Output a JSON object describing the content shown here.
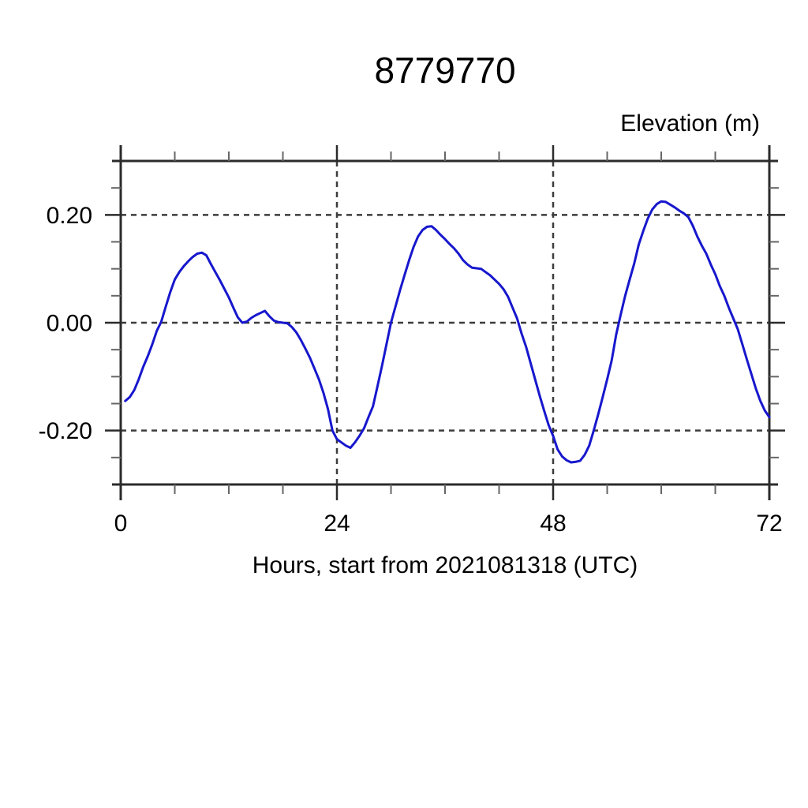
{
  "chart_data": {
    "type": "line",
    "title": "8779770",
    "x_axis": {
      "label": "Hours, start from 2021081318 (UTC)",
      "range": [
        0,
        72
      ],
      "major_ticks": [
        0,
        24,
        48,
        72
      ],
      "tick_labels": [
        "0",
        "24",
        "48",
        "72"
      ],
      "minor_tick_step": 6
    },
    "y_axis": {
      "label": "Elevation (m)",
      "range": [
        -0.3,
        0.3
      ],
      "major_ticks": [
        -0.2,
        0.0,
        0.2
      ],
      "tick_labels": [
        "-0.20",
        "0.00",
        "0.20"
      ],
      "minor_tick_step": 0.05
    },
    "gridlines": {
      "x": [
        24,
        48
      ],
      "y": [
        -0.2,
        0.0,
        0.2
      ],
      "style": "dashed"
    },
    "colors": {
      "line": "#1717cd",
      "grid": "#3c3c3c",
      "frame": "#2b2b2b",
      "minor_tick": "#666666",
      "text": "#000000",
      "background": "#ffffff"
    },
    "series": [
      {
        "name": "elevation",
        "points": [
          [
            0.5,
            -0.145
          ],
          [
            1,
            -0.138
          ],
          [
            1.5,
            -0.125
          ],
          [
            2,
            -0.105
          ],
          [
            2.5,
            -0.082
          ],
          [
            3,
            -0.062
          ],
          [
            3.5,
            -0.04
          ],
          [
            4,
            -0.015
          ],
          [
            4.5,
            0.002
          ],
          [
            5,
            0.03
          ],
          [
            5.5,
            0.057
          ],
          [
            6,
            0.08
          ],
          [
            6.5,
            0.094
          ],
          [
            7,
            0.105
          ],
          [
            7.5,
            0.114
          ],
          [
            8,
            0.122
          ],
          [
            8.5,
            0.128
          ],
          [
            9,
            0.13
          ],
          [
            9.5,
            0.125
          ],
          [
            10,
            0.109
          ],
          [
            10.5,
            0.094
          ],
          [
            11,
            0.079
          ],
          [
            11.5,
            0.063
          ],
          [
            12,
            0.047
          ],
          [
            12.5,
            0.028
          ],
          [
            13,
            0.01
          ],
          [
            13.5,
            0.0
          ],
          [
            14,
            0.002
          ],
          [
            14.5,
            0.009
          ],
          [
            15,
            0.014
          ],
          [
            15.5,
            0.018
          ],
          [
            16,
            0.022
          ],
          [
            16.5,
            0.012
          ],
          [
            17,
            0.004
          ],
          [
            17.5,
            0.001
          ],
          [
            18,
            0.0
          ],
          [
            18.5,
            -0.001
          ],
          [
            19,
            -0.008
          ],
          [
            19.5,
            -0.018
          ],
          [
            20,
            -0.032
          ],
          [
            20.5,
            -0.048
          ],
          [
            21,
            -0.065
          ],
          [
            21.5,
            -0.085
          ],
          [
            22,
            -0.105
          ],
          [
            22.5,
            -0.13
          ],
          [
            23,
            -0.16
          ],
          [
            23.5,
            -0.2
          ],
          [
            24,
            -0.216
          ],
          [
            24.5,
            -0.222
          ],
          [
            25,
            -0.228
          ],
          [
            25.5,
            -0.232
          ],
          [
            26,
            -0.222
          ],
          [
            26.5,
            -0.21
          ],
          [
            27,
            -0.196
          ],
          [
            27.5,
            -0.175
          ],
          [
            28,
            -0.155
          ],
          [
            28.5,
            -0.118
          ],
          [
            29,
            -0.08
          ],
          [
            29.5,
            -0.04
          ],
          [
            30,
            0.0
          ],
          [
            30.5,
            0.03
          ],
          [
            31,
            0.06
          ],
          [
            31.5,
            0.088
          ],
          [
            32,
            0.115
          ],
          [
            32.5,
            0.14
          ],
          [
            33,
            0.16
          ],
          [
            33.5,
            0.172
          ],
          [
            34,
            0.178
          ],
          [
            34.5,
            0.179
          ],
          [
            35,
            0.172
          ],
          [
            35.5,
            0.163
          ],
          [
            36,
            0.155
          ],
          [
            36.5,
            0.146
          ],
          [
            37,
            0.138
          ],
          [
            37.5,
            0.128
          ],
          [
            38,
            0.116
          ],
          [
            38.5,
            0.108
          ],
          [
            39,
            0.102
          ],
          [
            39.5,
            0.101
          ],
          [
            40,
            0.1
          ],
          [
            40.5,
            0.094
          ],
          [
            41,
            0.088
          ],
          [
            41.5,
            0.08
          ],
          [
            42,
            0.072
          ],
          [
            42.5,
            0.062
          ],
          [
            43,
            0.048
          ],
          [
            43.5,
            0.028
          ],
          [
            44,
            0.008
          ],
          [
            44.5,
            -0.02
          ],
          [
            45,
            -0.045
          ],
          [
            45.5,
            -0.075
          ],
          [
            46,
            -0.105
          ],
          [
            46.5,
            -0.135
          ],
          [
            47,
            -0.163
          ],
          [
            47.5,
            -0.19
          ],
          [
            48,
            -0.21
          ],
          [
            48.5,
            -0.235
          ],
          [
            49,
            -0.248
          ],
          [
            49.5,
            -0.255
          ],
          [
            50,
            -0.259
          ],
          [
            50.5,
            -0.258
          ],
          [
            51,
            -0.256
          ],
          [
            51.5,
            -0.245
          ],
          [
            52,
            -0.228
          ],
          [
            52.5,
            -0.2
          ],
          [
            53,
            -0.17
          ],
          [
            53.5,
            -0.138
          ],
          [
            54,
            -0.105
          ],
          [
            54.5,
            -0.07
          ],
          [
            55,
            -0.022
          ],
          [
            55.5,
            0.015
          ],
          [
            56,
            0.05
          ],
          [
            56.5,
            0.08
          ],
          [
            57,
            0.11
          ],
          [
            57.5,
            0.145
          ],
          [
            58,
            0.17
          ],
          [
            58.5,
            0.193
          ],
          [
            59,
            0.21
          ],
          [
            59.5,
            0.22
          ],
          [
            60,
            0.225
          ],
          [
            60.5,
            0.224
          ],
          [
            61,
            0.219
          ],
          [
            61.5,
            0.214
          ],
          [
            62,
            0.208
          ],
          [
            62.5,
            0.203
          ],
          [
            63,
            0.196
          ],
          [
            63.5,
            0.18
          ],
          [
            64,
            0.16
          ],
          [
            64.5,
            0.143
          ],
          [
            65,
            0.128
          ],
          [
            65.5,
            0.108
          ],
          [
            66,
            0.09
          ],
          [
            66.5,
            0.068
          ],
          [
            67,
            0.05
          ],
          [
            67.5,
            0.028
          ],
          [
            68,
            0.008
          ],
          [
            68.5,
            -0.012
          ],
          [
            69,
            -0.04
          ],
          [
            69.5,
            -0.068
          ],
          [
            70,
            -0.095
          ],
          [
            70.5,
            -0.122
          ],
          [
            71,
            -0.145
          ],
          [
            71.5,
            -0.163
          ],
          [
            72,
            -0.175
          ]
        ]
      }
    ]
  }
}
